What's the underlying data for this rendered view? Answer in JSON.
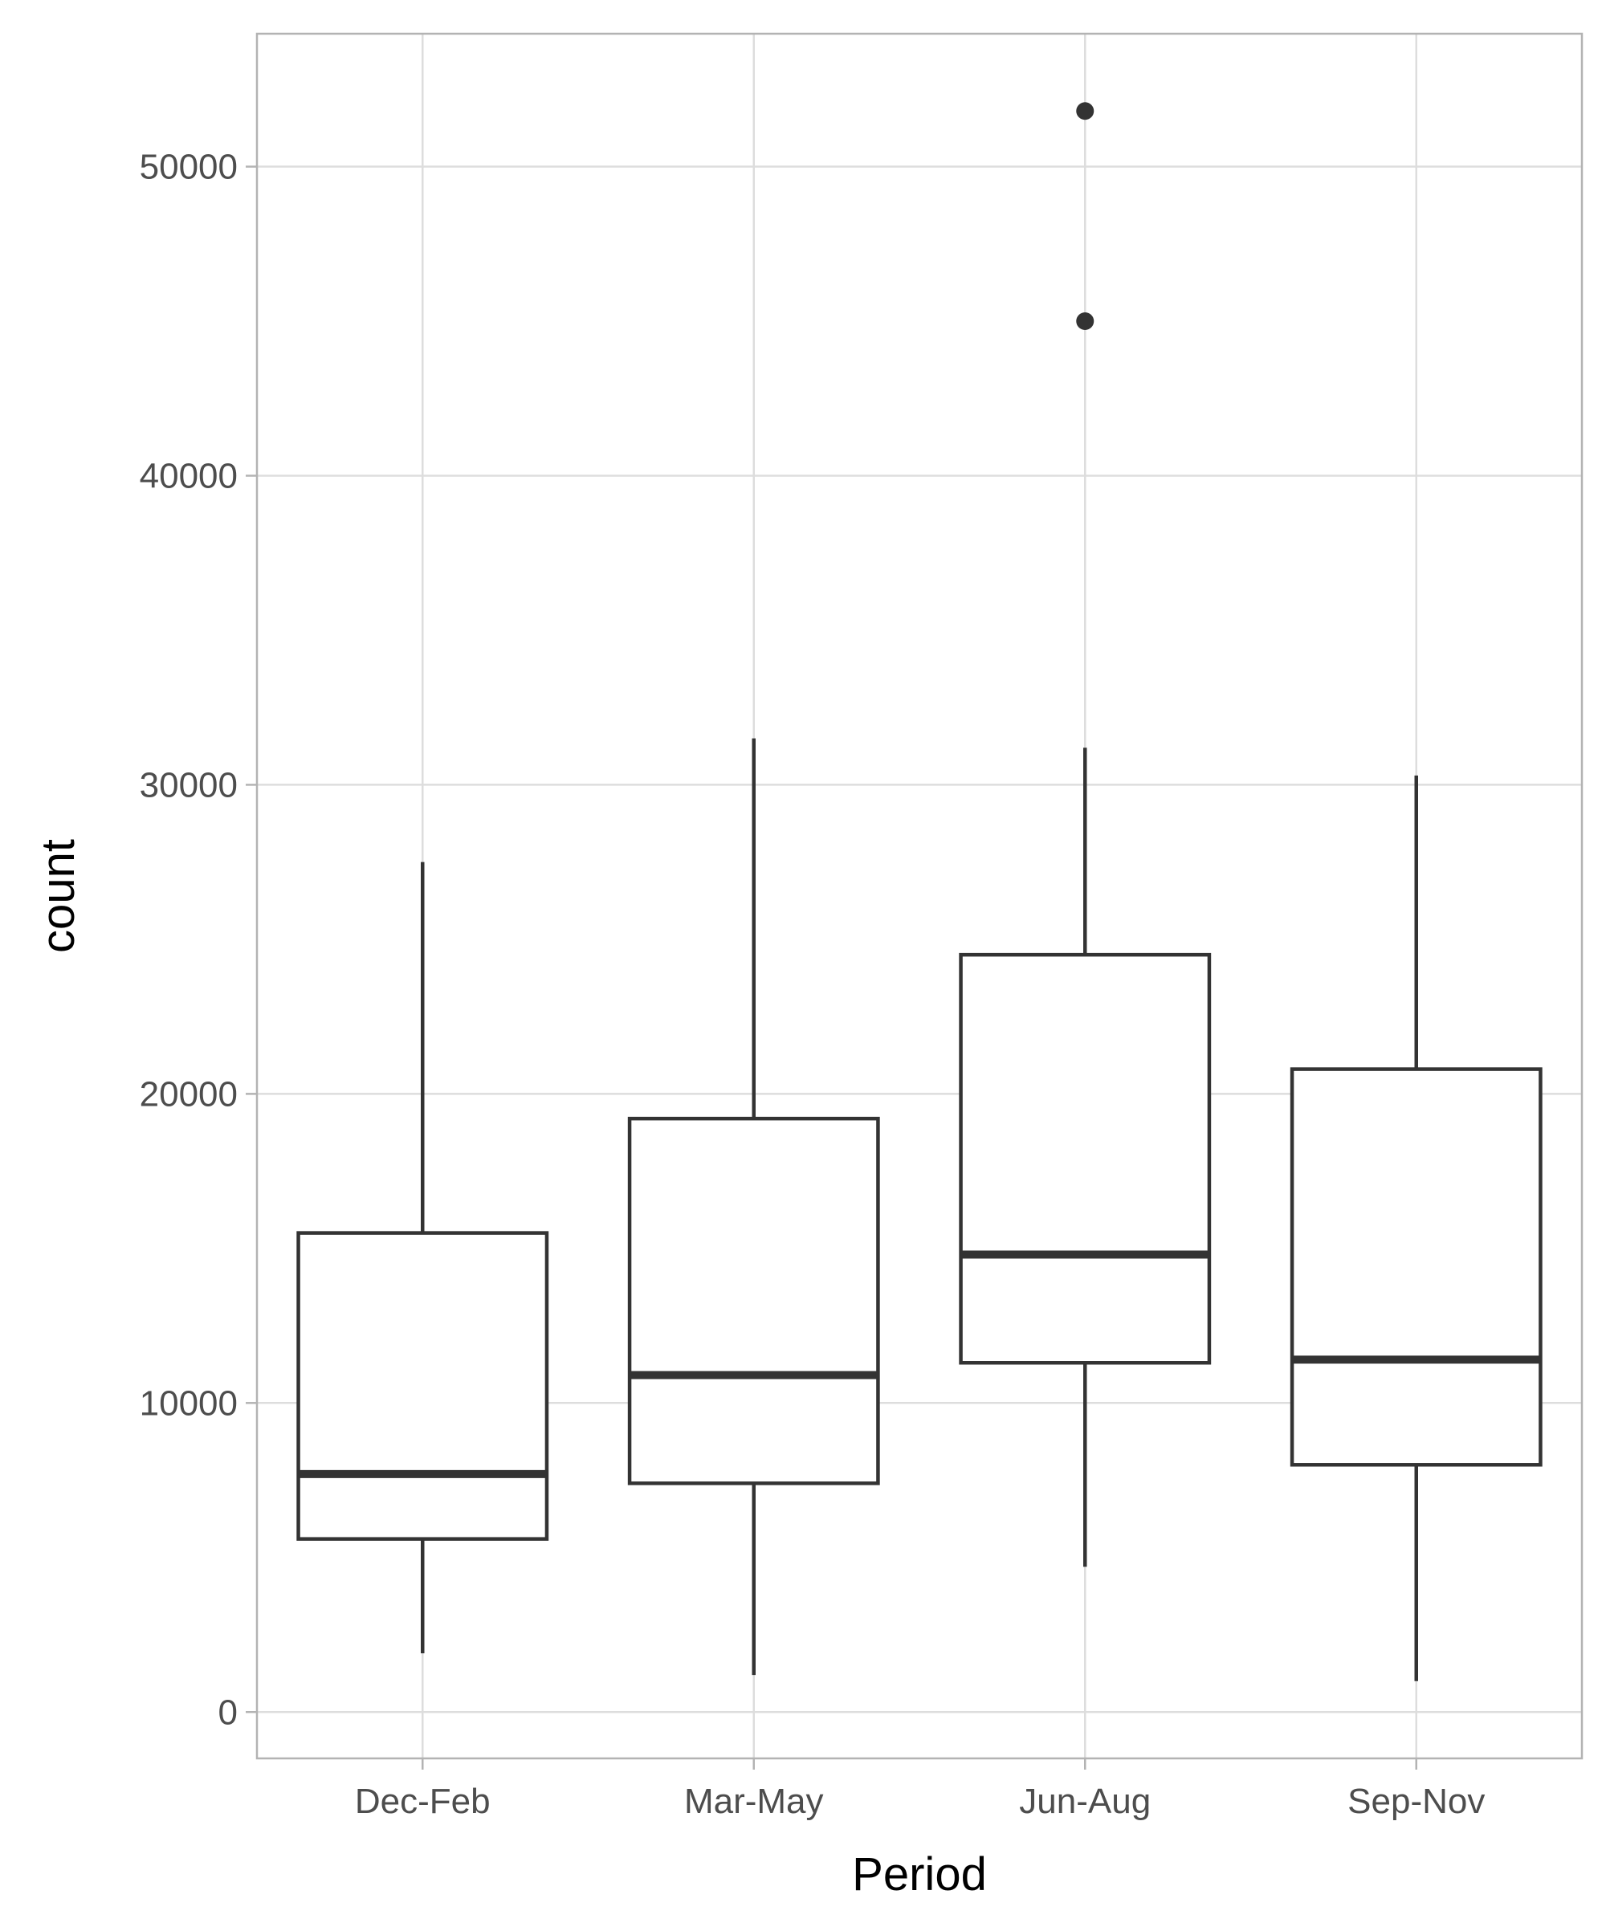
{
  "chart_data": {
    "type": "box",
    "title": "",
    "xlabel": "Period",
    "ylabel": "count",
    "ylim": [
      -1500,
      54300
    ],
    "yticks": [
      0,
      10000,
      20000,
      30000,
      40000,
      50000
    ],
    "categories": [
      "Dec-Feb",
      "Mar-May",
      "Jun-Aug",
      "Sep-Nov"
    ],
    "boxes": [
      {
        "category": "Dec-Feb",
        "whisker_low": 1900,
        "q1": 5600,
        "median": 7700,
        "q3": 15500,
        "whisker_high": 27500,
        "outliers": []
      },
      {
        "category": "Mar-May",
        "whisker_low": 1200,
        "q1": 7400,
        "median": 10900,
        "q3": 19200,
        "whisker_high": 31500,
        "outliers": []
      },
      {
        "category": "Jun-Aug",
        "whisker_low": 4700,
        "q1": 11300,
        "median": 14800,
        "q3": 24500,
        "whisker_high": 31200,
        "outliers": [
          45000,
          51800
        ]
      },
      {
        "category": "Sep-Nov",
        "whisker_low": 1000,
        "q1": 8000,
        "median": 11400,
        "q3": 20800,
        "whisker_high": 30300,
        "outliers": []
      }
    ],
    "grid": true,
    "colors": {
      "box_line": "#333333",
      "grid": "#dddddd",
      "panel_border": "#b3b3b3",
      "tick_text": "#4d4d4d"
    }
  }
}
